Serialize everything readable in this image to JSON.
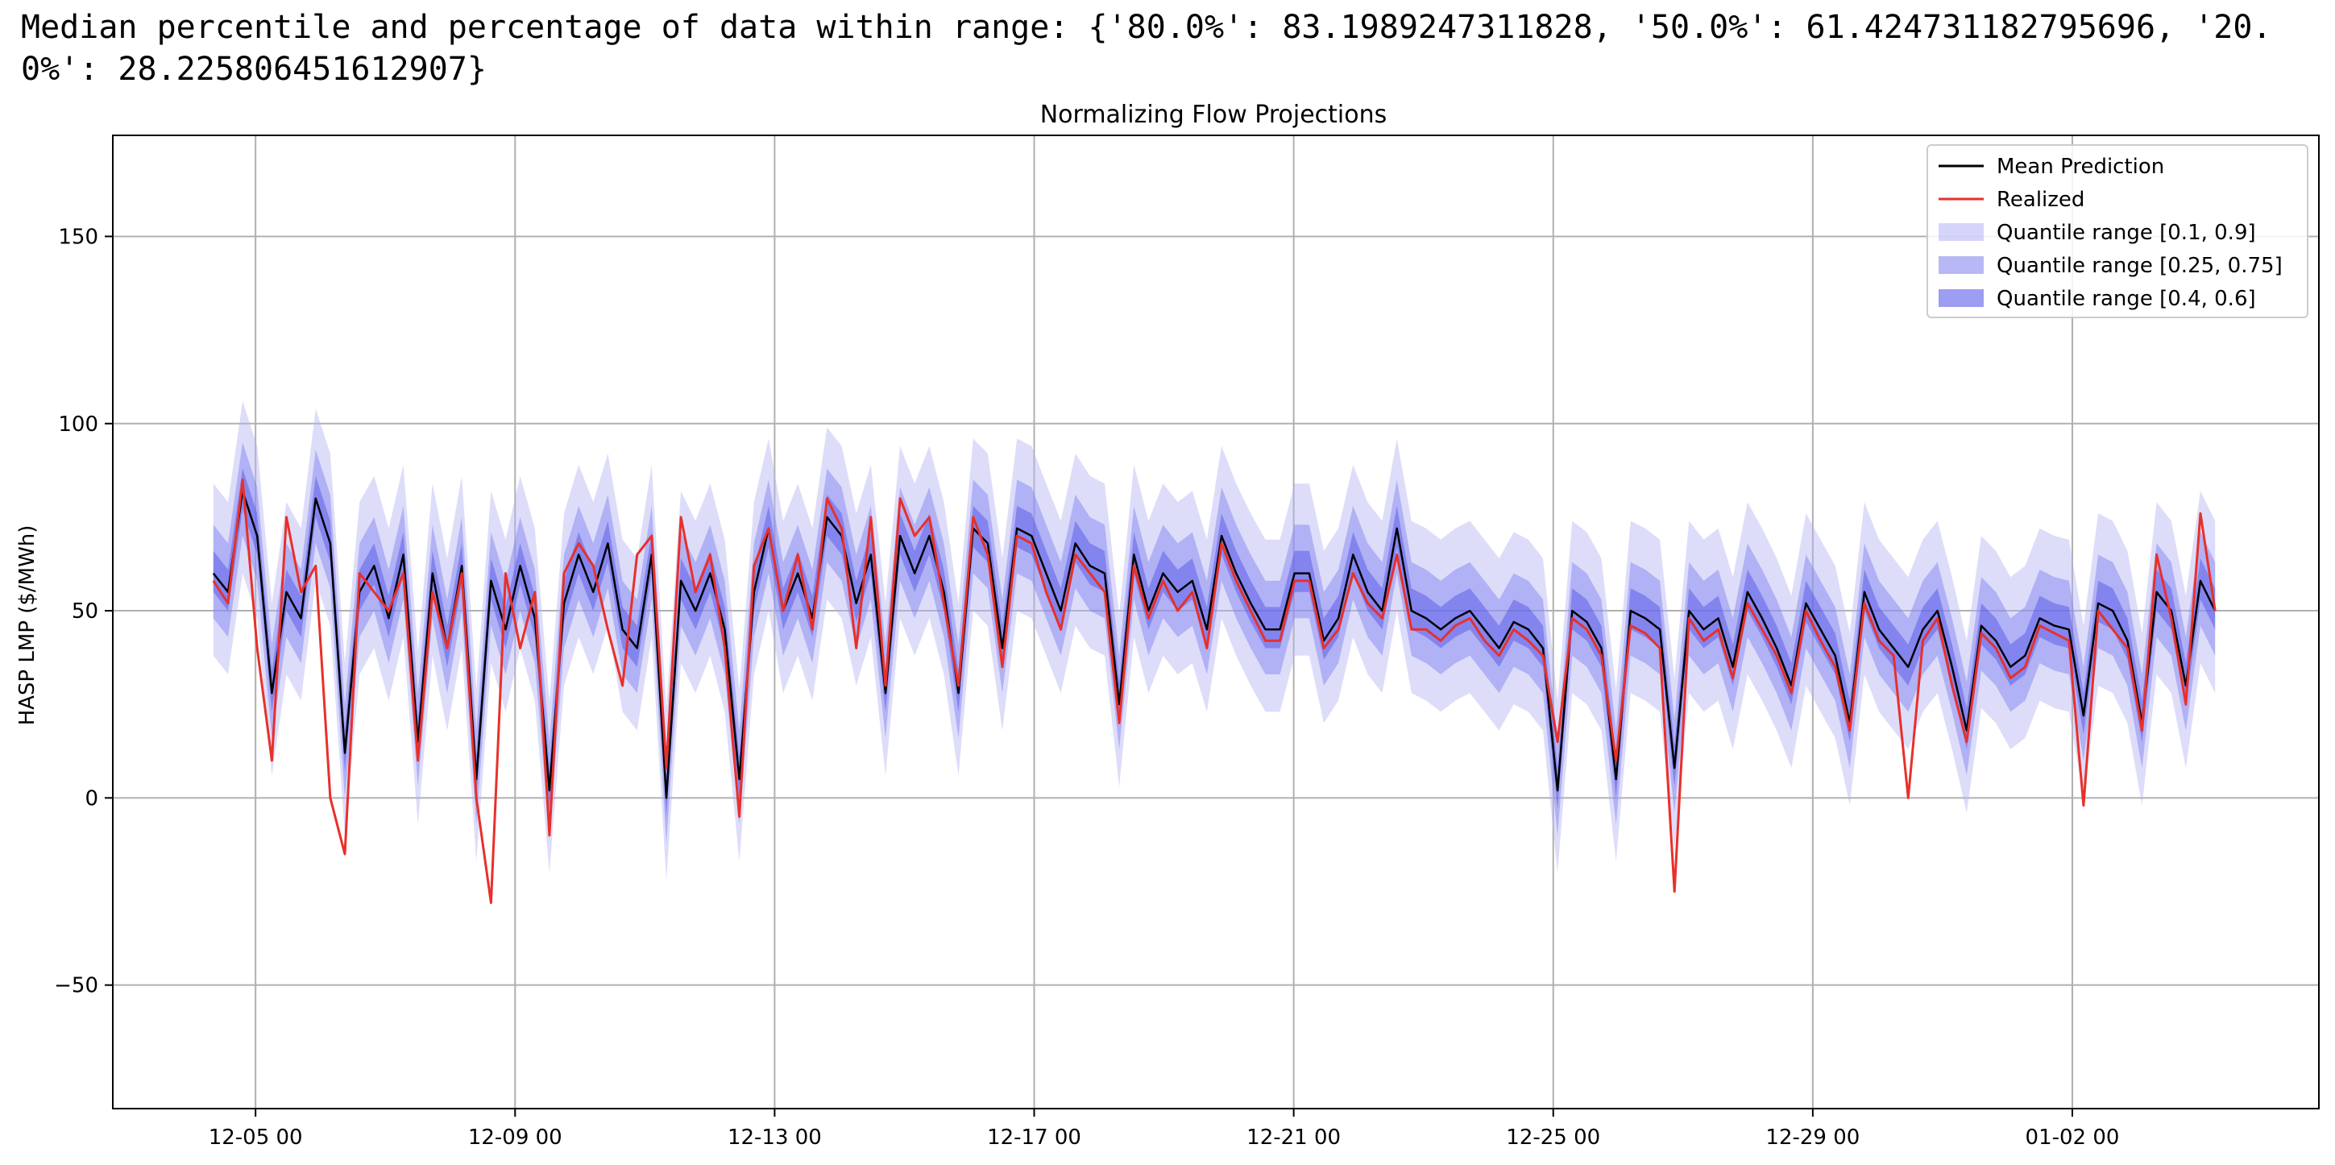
{
  "header": {
    "text": "Median percentile and percentage of data within range: {'80.0%': 83.1989247311828, '50.0%': 61.424731182795696, '20.0%': 28.225806451612907}"
  },
  "chart_data": {
    "type": "line",
    "title": "Normalizing Flow Projections",
    "xlabel": "",
    "ylabel": "HASP LMP ($/MWh)",
    "x_ticks": [
      "12-05 00",
      "12-09 00",
      "12-13 00",
      "12-17 00",
      "12-21 00",
      "12-25 00",
      "12-29 00",
      "01-02 00"
    ],
    "x_tick_days": [
      0,
      4,
      8,
      12,
      16,
      20,
      24,
      28
    ],
    "xlim_days": [
      -2.2,
      31.8
    ],
    "x_start_day": -0.65,
    "x_end_day": 30.2,
    "x_unit": "days relative to 12-05 00",
    "y_ticks": [
      -50,
      0,
      50,
      100,
      150
    ],
    "ylim": [
      -83,
      177
    ],
    "grid": true,
    "legend_position": "top-right",
    "colors": {
      "mean": "#000000",
      "realized": "#e8302a",
      "band_outer": "#b3b3f5",
      "band_mid": "#7d7df0",
      "band_inner": "#4d4de8"
    },
    "series": [
      {
        "name": "Mean Prediction",
        "key": "mean",
        "kind": "line",
        "values": [
          60,
          55,
          82,
          70,
          28,
          55,
          48,
          80,
          68,
          12,
          55,
          62,
          48,
          65,
          15,
          60,
          40,
          62,
          5,
          58,
          45,
          62,
          48,
          2,
          52,
          65,
          55,
          68,
          45,
          40,
          65,
          0,
          58,
          50,
          60,
          45,
          5,
          55,
          72,
          50,
          60,
          48,
          75,
          70,
          52,
          65,
          28,
          70,
          60,
          70,
          55,
          28,
          72,
          68,
          40,
          72,
          70,
          60,
          50,
          68,
          62,
          60,
          25,
          65,
          50,
          60,
          55,
          58,
          45,
          70,
          60,
          52,
          45,
          45,
          60,
          60,
          42,
          48,
          65,
          55,
          50,
          72,
          50,
          48,
          45,
          48,
          50,
          45,
          40,
          47,
          45,
          40,
          2,
          50,
          47,
          40,
          5,
          50,
          48,
          45,
          8,
          50,
          45,
          48,
          35,
          55,
          48,
          40,
          30,
          52,
          45,
          38,
          20,
          55,
          45,
          40,
          35,
          45,
          50,
          35,
          18,
          46,
          42,
          35,
          38,
          48,
          46,
          45,
          22,
          52,
          50,
          42,
          20,
          55,
          50,
          30,
          58,
          50
        ]
      },
      {
        "name": "Realized",
        "key": "realized",
        "kind": "line",
        "values": [
          58,
          52,
          85,
          40,
          10,
          75,
          55,
          62,
          0,
          -15,
          60,
          55,
          50,
          60,
          10,
          55,
          40,
          60,
          0,
          -28,
          60,
          40,
          55,
          -10,
          60,
          68,
          62,
          45,
          30,
          65,
          70,
          8,
          75,
          55,
          65,
          40,
          -5,
          62,
          72,
          50,
          65,
          45,
          80,
          72,
          40,
          75,
          30,
          80,
          70,
          75,
          52,
          30,
          75,
          65,
          35,
          70,
          68,
          55,
          45,
          65,
          60,
          55,
          20,
          62,
          48,
          58,
          50,
          55,
          40,
          68,
          58,
          50,
          42,
          42,
          58,
          58,
          40,
          45,
          60,
          52,
          48,
          65,
          45,
          45,
          42,
          46,
          48,
          42,
          38,
          45,
          42,
          38,
          15,
          48,
          45,
          38,
          10,
          46,
          44,
          40,
          -25,
          48,
          42,
          45,
          32,
          52,
          45,
          38,
          28,
          50,
          42,
          35,
          18,
          52,
          42,
          38,
          0,
          42,
          48,
          30,
          15,
          44,
          40,
          32,
          35,
          46,
          44,
          42,
          -2,
          50,
          45,
          40,
          18,
          65,
          48,
          25,
          76,
          50
        ]
      }
    ],
    "bands": [
      {
        "name": "Quantile range [0.1, 0.9]",
        "key": "band_outer",
        "lower_offset": -22,
        "upper_offset": 24
      },
      {
        "name": "Quantile range [0.25, 0.75]",
        "key": "band_mid",
        "lower_offset": -12,
        "upper_offset": 13
      },
      {
        "name": "Quantile range [0.4, 0.6]",
        "key": "band_inner",
        "lower_offset": -5,
        "upper_offset": 6
      }
    ]
  }
}
